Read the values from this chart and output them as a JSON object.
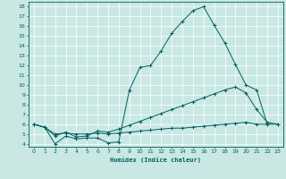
{
  "xlabel": "Humidex (Indice chaleur)",
  "xlim_min": -0.5,
  "xlim_max": 23.5,
  "ylim_min": 3.7,
  "ylim_max": 18.5,
  "yticks": [
    4,
    5,
    6,
    7,
    8,
    9,
    10,
    11,
    12,
    13,
    14,
    15,
    16,
    17,
    18
  ],
  "xticks": [
    0,
    1,
    2,
    3,
    4,
    5,
    6,
    7,
    8,
    9,
    10,
    11,
    12,
    13,
    14,
    15,
    16,
    17,
    18,
    19,
    20,
    21,
    22,
    23
  ],
  "bg_color": "#c9e8e4",
  "line_color": "#006060",
  "grid_color": "#ffffff",
  "line1_x": [
    0,
    1,
    2,
    3,
    4,
    5,
    6,
    7,
    8,
    9,
    10,
    11,
    12,
    13,
    14,
    15,
    16,
    17,
    18,
    19,
    20,
    21,
    22
  ],
  "line1_y": [
    6.0,
    5.7,
    4.0,
    4.8,
    4.5,
    4.6,
    4.6,
    4.1,
    4.2,
    9.5,
    11.8,
    12.0,
    13.5,
    15.3,
    16.5,
    17.6,
    18.0,
    16.1,
    14.3,
    12.1,
    10.0,
    9.5,
    6.0
  ],
  "line2_x": [
    0,
    1,
    2,
    3,
    4,
    5,
    6,
    7,
    8,
    9,
    10,
    11,
    12,
    13,
    14,
    15,
    16,
    17,
    18,
    19,
    20,
    21,
    22,
    23
  ],
  "line2_y": [
    6.0,
    5.7,
    4.8,
    5.2,
    4.7,
    4.8,
    5.3,
    5.2,
    5.5,
    5.9,
    6.3,
    6.7,
    7.1,
    7.5,
    7.9,
    8.3,
    8.7,
    9.1,
    9.5,
    9.8,
    9.2,
    7.5,
    6.2,
    6.0
  ],
  "line3_x": [
    0,
    1,
    2,
    3,
    4,
    5,
    6,
    7,
    8,
    9,
    10,
    11,
    12,
    13,
    14,
    15,
    16,
    17,
    18,
    19,
    20,
    21,
    22,
    23
  ],
  "line3_y": [
    6.0,
    5.7,
    5.0,
    5.1,
    5.0,
    5.0,
    5.1,
    5.0,
    5.1,
    5.2,
    5.3,
    5.4,
    5.5,
    5.6,
    5.6,
    5.7,
    5.8,
    5.9,
    6.0,
    6.1,
    6.2,
    6.0,
    6.0,
    6.0
  ]
}
